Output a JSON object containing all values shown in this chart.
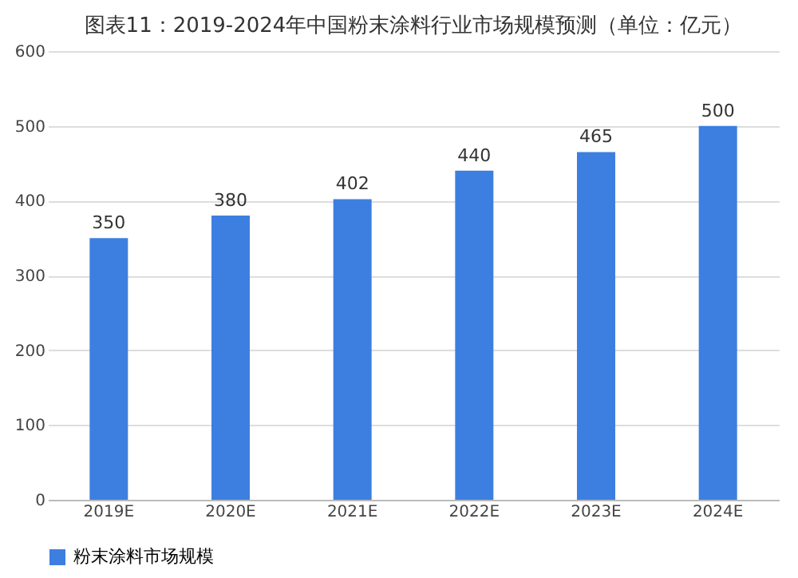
{
  "chart_data": {
    "type": "bar",
    "title": "图表11：2019-2024年中国粉末涂料行业市场规模预测（单位：亿元）",
    "categories": [
      "2019E",
      "2020E",
      "2021E",
      "2022E",
      "2023E",
      "2024E"
    ],
    "series": [
      {
        "name": "粉末涂料市场规模",
        "color": "#3d7fe0",
        "values": [
          350,
          380,
          402,
          440,
          465,
          500
        ]
      }
    ],
    "ylim": [
      0,
      600
    ],
    "yticks": [
      0,
      100,
      200,
      300,
      400,
      500,
      600
    ],
    "grid": "y",
    "data_labels": true,
    "legend": "bottom"
  }
}
